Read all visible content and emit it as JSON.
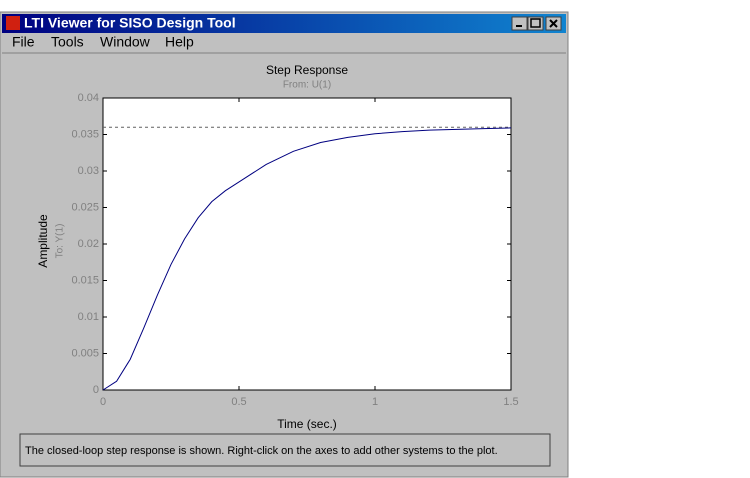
{
  "window": {
    "title": "LTI Viewer for SISO Design Tool",
    "menu": [
      "File",
      "Tools",
      "Window",
      "Help"
    ]
  },
  "chart_data": {
    "type": "line",
    "title": "Step Response",
    "subtitle": "From: U(1)",
    "x_label": "Time (sec.)",
    "y_label": "Amplitude",
    "y_sublabel": "To: Y(1)",
    "x": [
      0,
      0.05,
      0.1,
      0.15,
      0.2,
      0.25,
      0.3,
      0.35,
      0.4,
      0.45,
      0.5,
      0.6,
      0.7,
      0.8,
      0.9,
      1.0,
      1.1,
      1.2,
      1.3,
      1.4,
      1.5
    ],
    "values": [
      0,
      0.0012,
      0.0042,
      0.0085,
      0.013,
      0.0172,
      0.0207,
      0.0236,
      0.0258,
      0.0273,
      0.0285,
      0.0309,
      0.0327,
      0.0339,
      0.0346,
      0.0351,
      0.0354,
      0.0356,
      0.0357,
      0.0358,
      0.0359
    ],
    "color": "#000080",
    "steady_state": 0.036,
    "xlim": [
      0,
      1.5
    ],
    "xticks": [
      0,
      0.5,
      1,
      1.5
    ],
    "ylim": [
      0,
      0.04
    ],
    "yticks": [
      0,
      0.005,
      0.01,
      0.015,
      0.02,
      0.025,
      0.03,
      0.035,
      0.04
    ]
  },
  "status": "The closed-loop step response is shown. Right-click on the axes to add other systems to the plot."
}
